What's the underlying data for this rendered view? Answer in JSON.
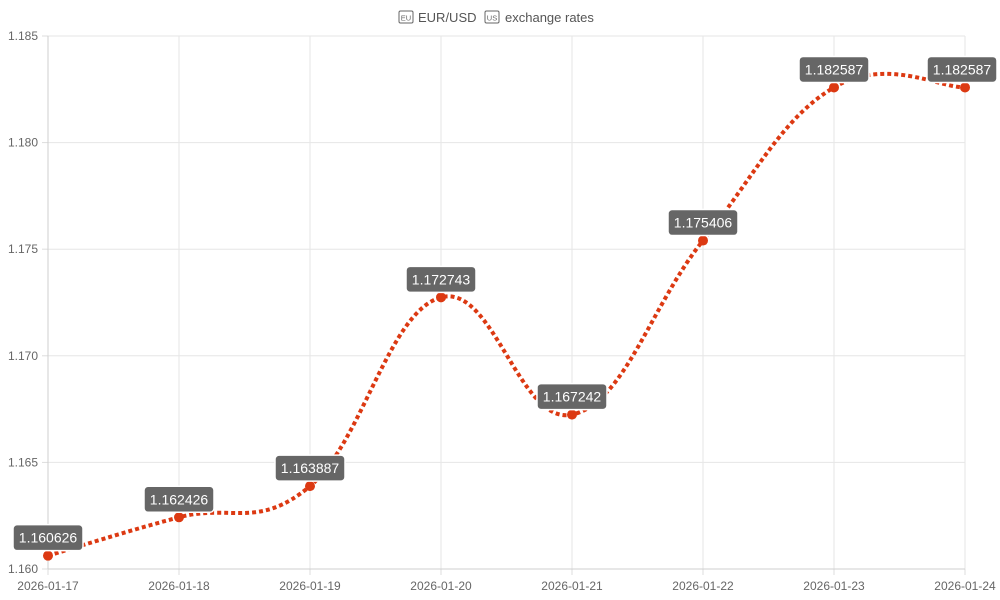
{
  "chart_data": {
    "type": "line",
    "title": "EUR/USD exchange rates",
    "title_icons": [
      "eu-flag-icon",
      "us-flag-icon"
    ],
    "title_prefix_icon": "eu-flag-icon",
    "title_mid_icon": "us-flag-icon",
    "title_part1": "EUR/USD",
    "title_part2": "exchange rates",
    "categories": [
      "2026-01-17",
      "2026-01-18",
      "2026-01-19",
      "2026-01-20",
      "2026-01-21",
      "2026-01-22",
      "2026-01-23",
      "2026-01-24"
    ],
    "series": [
      {
        "values": [
          1.160626,
          1.162426,
          1.163887,
          1.172743,
          1.167242,
          1.175406,
          1.182587,
          1.182587
        ],
        "color": "#dc3912",
        "line_style": "dotted",
        "smooth": true
      }
    ],
    "data_labels": [
      "1.160626",
      "1.162426",
      "1.163887",
      "1.172743",
      "1.167242",
      "1.175406",
      "1.182587",
      "1.182587"
    ],
    "yticks": [
      "1.160",
      "1.165",
      "1.170",
      "1.175",
      "1.180",
      "1.185"
    ],
    "ylim": [
      1.16,
      1.185
    ],
    "xlabel": "",
    "ylabel": "",
    "grid": true,
    "legend": "none",
    "label_box_color": "#666666"
  }
}
